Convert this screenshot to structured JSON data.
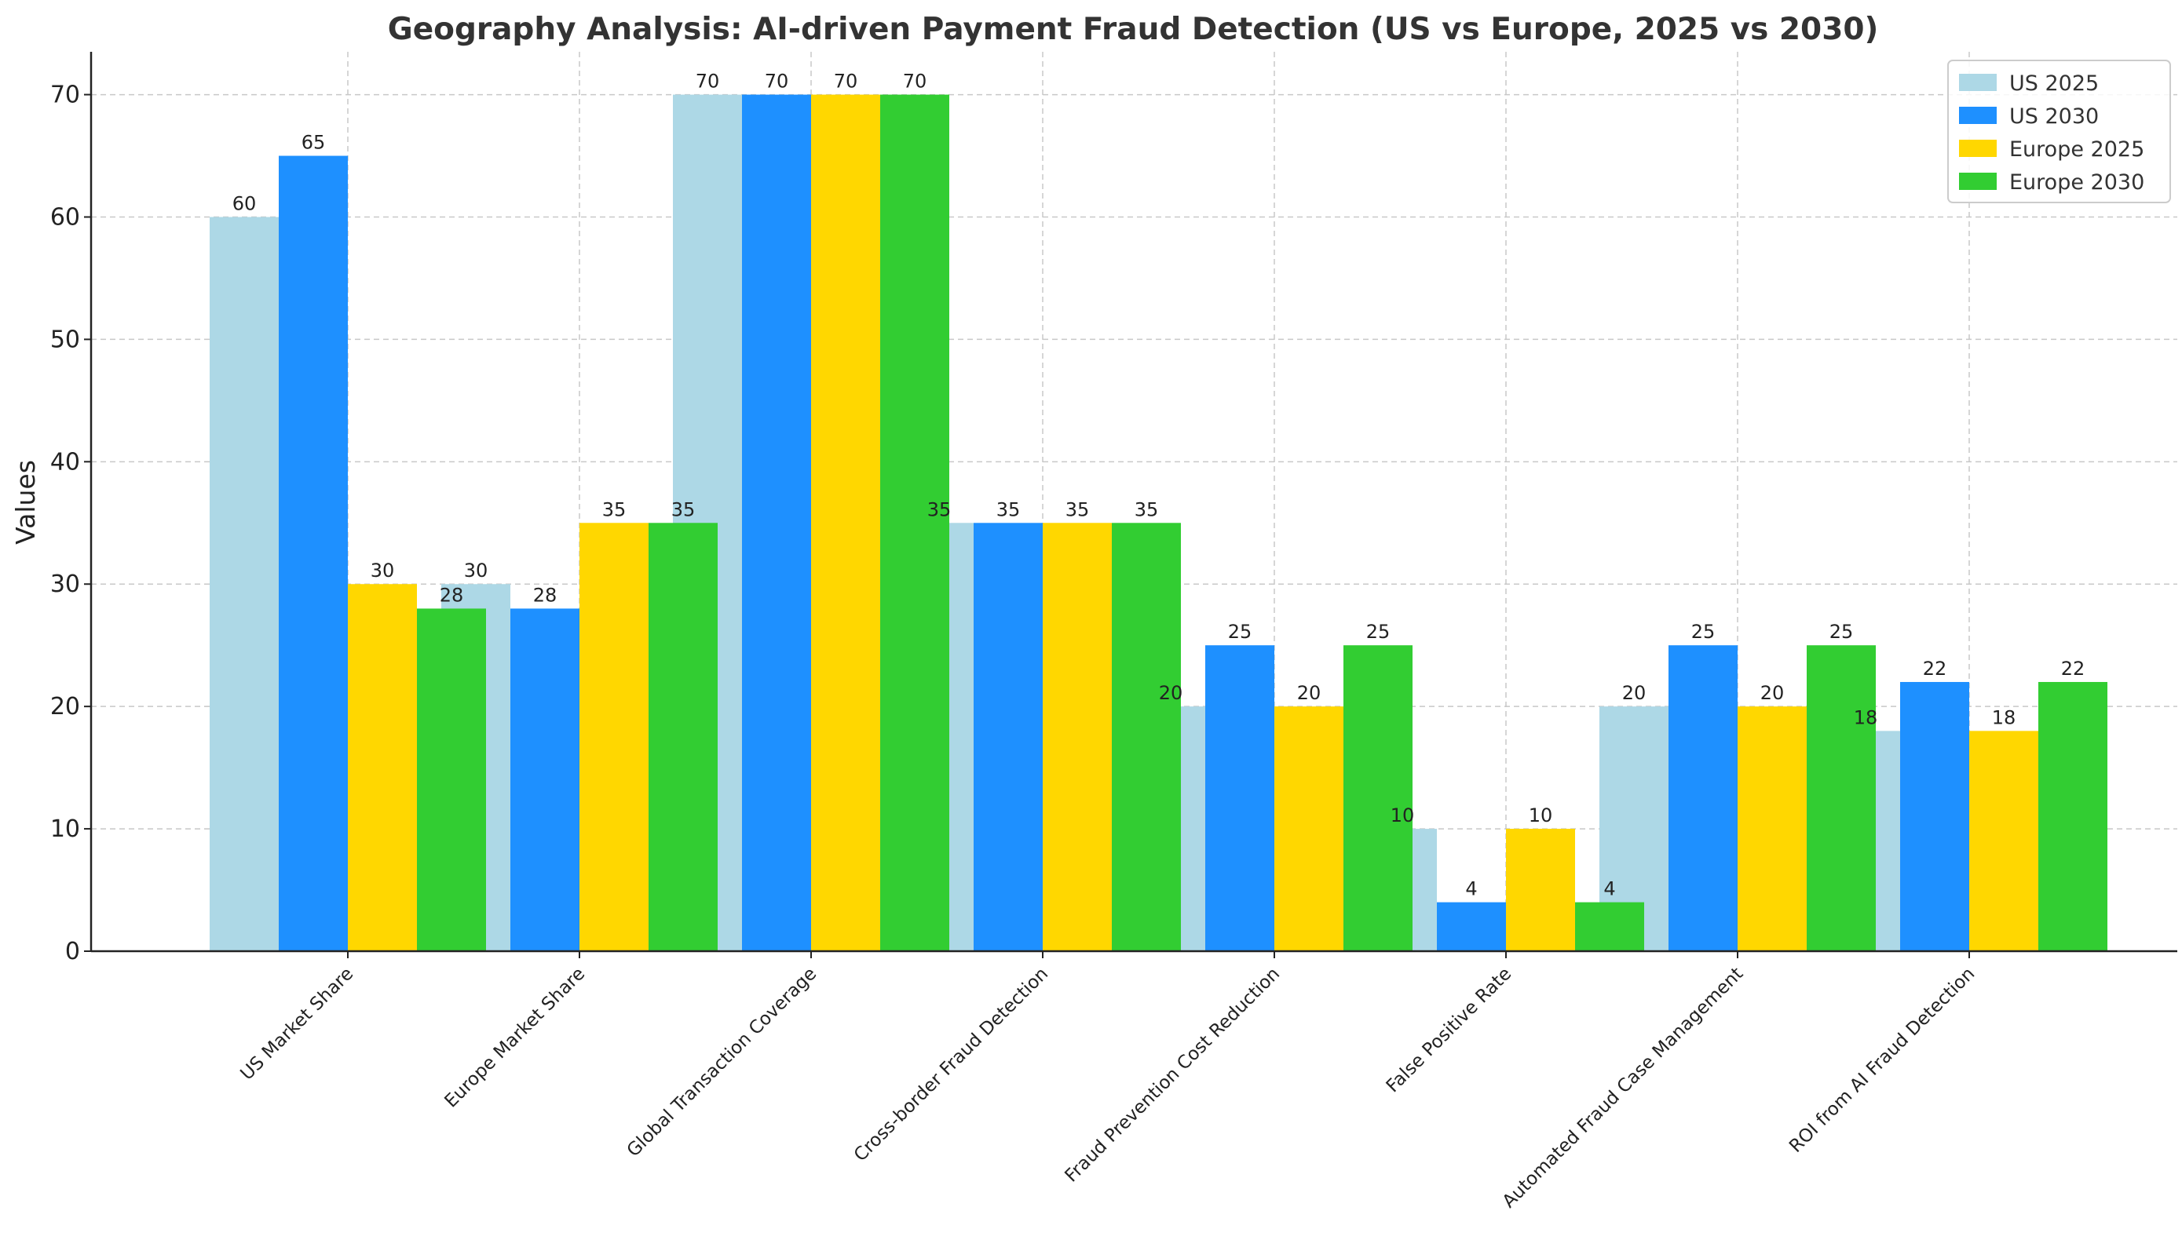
{
  "chart_data": {
    "type": "bar",
    "title": "Geography Analysis: AI-driven Payment Fraud Detection (US vs Europe, 2025 vs 2030)",
    "xlabel": "",
    "ylabel": "Values",
    "ylim": [
      0,
      73.5
    ],
    "yticks": [
      "0",
      "10",
      "20",
      "30",
      "40",
      "50",
      "60",
      "70"
    ],
    "grid": true,
    "legend_position": "top-right",
    "categories": [
      "US Market Share",
      "Europe Market Share",
      "Global Transaction Coverage",
      "Cross-border Fraud Detection",
      "Fraud Prevention Cost Reduction",
      "False Positive Rate",
      "Automated Fraud Case Management",
      "ROI from AI Fraud Detection"
    ],
    "series": [
      {
        "name": "US 2025",
        "color": "#ADD8E6",
        "values": [
          60,
          30,
          70,
          35,
          20,
          10,
          20,
          18
        ]
      },
      {
        "name": "US 2030",
        "color": "#1E90FF",
        "values": [
          65,
          28,
          70,
          35,
          25,
          4,
          25,
          22
        ]
      },
      {
        "name": "Europe 2025",
        "color": "#FFD700",
        "values": [
          30,
          35,
          70,
          35,
          20,
          10,
          20,
          18
        ]
      },
      {
        "name": "Europe 2030",
        "color": "#32CD32",
        "values": [
          28,
          35,
          70,
          35,
          25,
          4,
          25,
          22
        ]
      }
    ]
  }
}
